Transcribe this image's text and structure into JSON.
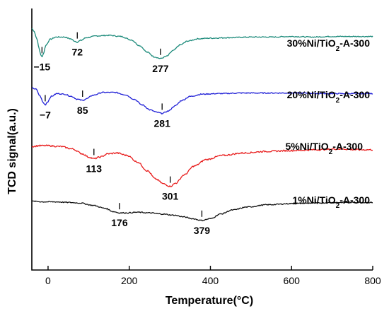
{
  "chart_data": {
    "type": "line",
    "xlabel": "Temperature(°C)",
    "ylabel": "TCD signal(a.u.)",
    "xlim": [
      -40,
      800
    ],
    "xticks": [
      0,
      200,
      400,
      600,
      800
    ],
    "y_scale": "arbitrary units, stacked traces",
    "grid": false,
    "series": [
      {
        "name": "30%Ni/TiO2-A-300",
        "label_main": "30%Ni/TiO",
        "label_sub": "2",
        "label_tail": "-A-300",
        "color": "#1b8a7a",
        "peaks": [
          {
            "x": -15,
            "label": "−15"
          },
          {
            "x": 72,
            "label": "72"
          },
          {
            "x": 277,
            "label": "277"
          }
        ],
        "points": [
          [
            -40,
            0.97
          ],
          [
            -35,
            0.93
          ],
          [
            -28,
            0.8
          ],
          [
            -22,
            0.62
          ],
          [
            -18,
            0.5
          ],
          [
            -15,
            0.47
          ],
          [
            -12,
            0.52
          ],
          [
            -5,
            0.68
          ],
          [
            5,
            0.78
          ],
          [
            20,
            0.82
          ],
          [
            40,
            0.82
          ],
          [
            55,
            0.79
          ],
          [
            65,
            0.75
          ],
          [
            72,
            0.73
          ],
          [
            80,
            0.76
          ],
          [
            95,
            0.81
          ],
          [
            120,
            0.84
          ],
          [
            150,
            0.85
          ],
          [
            180,
            0.83
          ],
          [
            205,
            0.77
          ],
          [
            225,
            0.67
          ],
          [
            245,
            0.55
          ],
          [
            262,
            0.47
          ],
          [
            277,
            0.44
          ],
          [
            292,
            0.48
          ],
          [
            308,
            0.58
          ],
          [
            325,
            0.68
          ],
          [
            345,
            0.75
          ],
          [
            370,
            0.79
          ],
          [
            400,
            0.8
          ],
          [
            450,
            0.81
          ],
          [
            500,
            0.82
          ],
          [
            550,
            0.82
          ],
          [
            600,
            0.83
          ],
          [
            650,
            0.82
          ],
          [
            700,
            0.83
          ],
          [
            750,
            0.83
          ],
          [
            800,
            0.83
          ]
        ]
      },
      {
        "name": "20%Ni/TiO2-A-300",
        "label_main": "20%Ni/TiO",
        "label_sub": "2",
        "label_tail": "-A-300",
        "color": "#1e1ed6",
        "peaks": [
          {
            "x": -7,
            "label": "−7"
          },
          {
            "x": 85,
            "label": "85"
          },
          {
            "x": 281,
            "label": "281"
          }
        ],
        "points": [
          [
            -40,
            0.92
          ],
          [
            -30,
            0.9
          ],
          [
            -20,
            0.78
          ],
          [
            -12,
            0.66
          ],
          [
            -7,
            0.62
          ],
          [
            -2,
            0.67
          ],
          [
            8,
            0.77
          ],
          [
            22,
            0.82
          ],
          [
            40,
            0.81
          ],
          [
            58,
            0.77
          ],
          [
            72,
            0.72
          ],
          [
            85,
            0.7
          ],
          [
            95,
            0.73
          ],
          [
            110,
            0.79
          ],
          [
            135,
            0.84
          ],
          [
            165,
            0.84
          ],
          [
            190,
            0.8
          ],
          [
            212,
            0.72
          ],
          [
            232,
            0.62
          ],
          [
            252,
            0.53
          ],
          [
            268,
            0.49
          ],
          [
            281,
            0.47
          ],
          [
            296,
            0.51
          ],
          [
            312,
            0.6
          ],
          [
            330,
            0.7
          ],
          [
            350,
            0.77
          ],
          [
            380,
            0.81
          ],
          [
            420,
            0.82
          ],
          [
            480,
            0.83
          ],
          [
            550,
            0.83
          ],
          [
            620,
            0.83
          ],
          [
            680,
            0.82
          ],
          [
            740,
            0.82
          ],
          [
            800,
            0.82
          ]
        ]
      },
      {
        "name": "5%Ni/TiO2-A-300",
        "label_main": "5%Ni/TiO",
        "label_sub": "2",
        "label_tail": "-A-300",
        "color": "#e81c1c",
        "peaks": [
          {
            "x": 113,
            "label": "113"
          },
          {
            "x": 301,
            "label": "301"
          }
        ],
        "points": [
          [
            -40,
            0.85
          ],
          [
            -20,
            0.86
          ],
          [
            0,
            0.86
          ],
          [
            30,
            0.85
          ],
          [
            60,
            0.82
          ],
          [
            85,
            0.76
          ],
          [
            100,
            0.72
          ],
          [
            113,
            0.7
          ],
          [
            128,
            0.72
          ],
          [
            148,
            0.76
          ],
          [
            170,
            0.77
          ],
          [
            195,
            0.74
          ],
          [
            220,
            0.66
          ],
          [
            245,
            0.55
          ],
          [
            265,
            0.45
          ],
          [
            285,
            0.39
          ],
          [
            301,
            0.36
          ],
          [
            315,
            0.4
          ],
          [
            335,
            0.5
          ],
          [
            360,
            0.61
          ],
          [
            390,
            0.69
          ],
          [
            430,
            0.74
          ],
          [
            480,
            0.77
          ],
          [
            540,
            0.79
          ],
          [
            600,
            0.8
          ],
          [
            660,
            0.81
          ],
          [
            720,
            0.82
          ],
          [
            760,
            0.81
          ],
          [
            800,
            0.81
          ]
        ]
      },
      {
        "name": "1%Ni/TiO2-A-300",
        "label_main": "1%Ni/TiO",
        "label_sub": "2",
        "label_tail": "-A-300",
        "color": "#111111",
        "peaks": [
          {
            "x": 176,
            "label": "176"
          },
          {
            "x": 379,
            "label": "379"
          }
        ],
        "points": [
          [
            -40,
            0.82
          ],
          [
            -10,
            0.81
          ],
          [
            20,
            0.81
          ],
          [
            50,
            0.8
          ],
          [
            80,
            0.79
          ],
          [
            110,
            0.75
          ],
          [
            140,
            0.7
          ],
          [
            162,
            0.64
          ],
          [
            176,
            0.62
          ],
          [
            195,
            0.62
          ],
          [
            220,
            0.63
          ],
          [
            250,
            0.62
          ],
          [
            280,
            0.6
          ],
          [
            310,
            0.58
          ],
          [
            335,
            0.55
          ],
          [
            355,
            0.52
          ],
          [
            379,
            0.49
          ],
          [
            400,
            0.52
          ],
          [
            425,
            0.6
          ],
          [
            455,
            0.67
          ],
          [
            490,
            0.72
          ],
          [
            540,
            0.76
          ],
          [
            600,
            0.78
          ],
          [
            660,
            0.79
          ],
          [
            720,
            0.8
          ],
          [
            770,
            0.8
          ],
          [
            800,
            0.8
          ]
        ]
      }
    ]
  }
}
